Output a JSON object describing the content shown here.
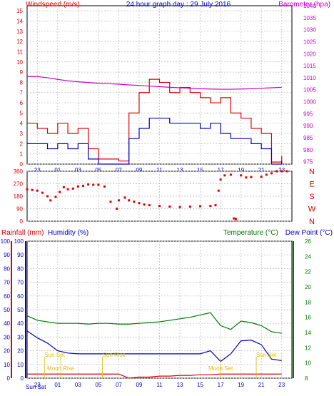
{
  "colors": {
    "red": "#dd0000",
    "blue": "#0000cc",
    "magenta": "#cc00cc",
    "green": "#007700",
    "sun": "#ddbb00",
    "grid": "#bbbbbb"
  },
  "top": {
    "title": "24 hour graph day : 29 July 2016",
    "wind_label": "Windspeed (m/s)",
    "baro_label": "Barometer (hpa)"
  },
  "direction_labels": [
    "N",
    "W",
    "S",
    "E",
    "N"
  ],
  "bottom": {
    "rain_label": "Rainfall (mm)",
    "hum_label": "Humidity (%)",
    "temp_label": "Temperature (°C)",
    "dew_label": "Dew Point (°C)"
  },
  "events": [
    {
      "label": "Sun Set",
      "hour": -0.3,
      "row": 0
    },
    {
      "label": "Sun Rise",
      "hour": 5.4,
      "row": 0
    },
    {
      "label": "Sun Set",
      "hour": 20.5,
      "row": 0
    },
    {
      "label": "Moon Rise",
      "hour": 1.3,
      "row": 1
    },
    {
      "label": "Moon Set",
      "hour": 17.0,
      "row": 1
    }
  ],
  "footer_left": "Sun Sat",
  "chart_data": [
    {
      "type": "line",
      "title": "24 hour graph day : 29 July 2016",
      "x_hours": [
        -2,
        -1,
        0,
        1,
        2,
        3,
        4,
        5,
        6,
        7,
        8,
        9,
        10,
        11,
        12,
        13,
        14,
        15,
        16,
        17,
        18,
        19,
        20,
        21,
        22,
        23
      ],
      "x_tick_labels": [
        "23",
        "01",
        "03",
        "05",
        "07",
        "09",
        "11",
        "13",
        "15",
        "17",
        "19",
        "21",
        "23"
      ],
      "x_tick_hours": [
        -1,
        1,
        3,
        5,
        7,
        9,
        11,
        13,
        15,
        17,
        19,
        21,
        23
      ],
      "left_axis": {
        "label": "Windspeed (m/s)",
        "range": [
          0,
          15.5
        ],
        "ticks": [
          0,
          1,
          2,
          3,
          4,
          5,
          6,
          7,
          8,
          9,
          10,
          11,
          12,
          13,
          14,
          15
        ]
      },
      "right_axis": {
        "label": "Barometer (hpa)",
        "range": [
          974,
          1040
        ],
        "ticks": [
          975,
          980,
          985,
          990,
          995,
          1000,
          1005,
          1010,
          1015,
          1020,
          1025,
          1030,
          1035,
          1040
        ]
      },
      "series": [
        {
          "name": "Windspeed (m/s)",
          "axis": "left",
          "color": "#dd0000",
          "values": [
            4,
            3.5,
            3,
            4,
            3,
            3.5,
            1.5,
            0.5,
            0.5,
            0.3,
            5,
            7,
            8.3,
            8,
            7,
            7.5,
            7,
            6.5,
            6,
            6.5,
            5,
            4.5,
            3.5,
            3,
            0.2,
            0.8
          ]
        },
        {
          "name": "Gust",
          "axis": "left",
          "color": "#0000cc",
          "values": [
            2,
            2,
            1.5,
            2,
            1.5,
            2,
            0.5,
            0,
            0,
            0,
            2.5,
            3.5,
            4.5,
            4.5,
            4,
            4,
            4,
            3.5,
            4,
            3,
            2.5,
            2.5,
            2,
            1.5,
            0,
            0.3
          ]
        },
        {
          "name": "Barometer (hpa)",
          "axis": "right",
          "color": "#cc00cc",
          "values": [
            1010.5,
            1010.5,
            1010,
            1009.3,
            1008.7,
            1008.3,
            1008,
            1007.7,
            1007.5,
            1007.3,
            1007,
            1006.8,
            1006.5,
            1006.3,
            1006,
            1005.8,
            1005.6,
            1005.4,
            1005.3,
            1005.2,
            1005.2,
            1005.3,
            1005.4,
            1005.6,
            1005.8,
            1006
          ]
        }
      ]
    },
    {
      "type": "scatter",
      "axis": {
        "range": [
          0,
          360
        ],
        "ticks": [
          0,
          90,
          180,
          270,
          360
        ]
      },
      "series": [
        {
          "name": "Wind direction",
          "color": "#dd0000",
          "points": [
            [
              -2,
              230
            ],
            [
              -1.5,
              225
            ],
            [
              -1,
              220
            ],
            [
              -0.5,
              205
            ],
            [
              0,
              180
            ],
            [
              0.3,
              150
            ],
            [
              0.8,
              175
            ],
            [
              1.2,
              210
            ],
            [
              1.6,
              245
            ],
            [
              2,
              230
            ],
            [
              2.5,
              235
            ],
            [
              3,
              250
            ],
            [
              3.5,
              255
            ],
            [
              4,
              265
            ],
            [
              4.5,
              262
            ],
            [
              5,
              262
            ],
            [
              5.6,
              250
            ],
            [
              6.2,
              140
            ],
            [
              6.8,
              90
            ],
            [
              7,
              150
            ],
            [
              7.6,
              170
            ],
            [
              8,
              150
            ],
            [
              8.5,
              140
            ],
            [
              9,
              130
            ],
            [
              9.5,
              120
            ],
            [
              10,
              115
            ],
            [
              11,
              110
            ],
            [
              12,
              105
            ],
            [
              13,
              102
            ],
            [
              14,
              105
            ],
            [
              15,
              108
            ],
            [
              16,
              110
            ],
            [
              16.5,
              115
            ],
            [
              16.8,
              220
            ],
            [
              17,
              300
            ],
            [
              17.4,
              330
            ],
            [
              18,
              335
            ],
            [
              18.3,
              20
            ],
            [
              18.5,
              15
            ],
            [
              19,
              330
            ],
            [
              19.5,
              315
            ],
            [
              20,
              318
            ],
            [
              21,
              320
            ],
            [
              21.5,
              335
            ],
            [
              22,
              345
            ],
            [
              22.5,
              360
            ],
            [
              23,
              360
            ],
            [
              23.5,
              360
            ]
          ]
        }
      ]
    },
    {
      "type": "line",
      "left_axis": {
        "label": "Rainfall (mm) / Humidity (%)",
        "range": [
          0,
          100
        ],
        "ticks": [
          0,
          10,
          20,
          30,
          40,
          50,
          60,
          70,
          80,
          90,
          100
        ]
      },
      "right_axis": {
        "label": "Temperature (°C) / Dew Point (°C)",
        "range": [
          8,
          26
        ],
        "ticks": [
          8,
          10,
          12,
          14,
          16,
          18,
          20,
          22,
          24,
          26
        ]
      },
      "series": [
        {
          "name": "Temperature (°C)",
          "axis": "right",
          "color": "#007700",
          "values": [
            16.2,
            15.6,
            15.4,
            15.2,
            15.2,
            15.2,
            15.1,
            15.2,
            15.2,
            15.1,
            15.1,
            15.2,
            15.3,
            15.4,
            15.6,
            15.8,
            16.0,
            16.3,
            16.6,
            14.9,
            14.4,
            15.5,
            15.3,
            14.9,
            14.1,
            13.9
          ]
        },
        {
          "name": "Dew Point (°C)",
          "axis": "right",
          "color": "#0000cc",
          "values": [
            14.2,
            13.3,
            12.6,
            11.6,
            11.3,
            11.2,
            11.2,
            11.2,
            11.2,
            11.2,
            11.2,
            11.2,
            11.2,
            11.2,
            11.2,
            11.2,
            11.2,
            11.2,
            11.6,
            10.2,
            11.2,
            12.9,
            13.0,
            12.4,
            10.5,
            10.3
          ]
        },
        {
          "name": "Rainfall (mm)",
          "axis": "left",
          "color": "#dd0000",
          "values": [
            3,
            3,
            3,
            3,
            3,
            3,
            3,
            3,
            3,
            3,
            0,
            0.8,
            0.8,
            1.5,
            1.5,
            2,
            2,
            2.5,
            2.5,
            3,
            3,
            3,
            3,
            3,
            3,
            3
          ]
        }
      ]
    }
  ]
}
